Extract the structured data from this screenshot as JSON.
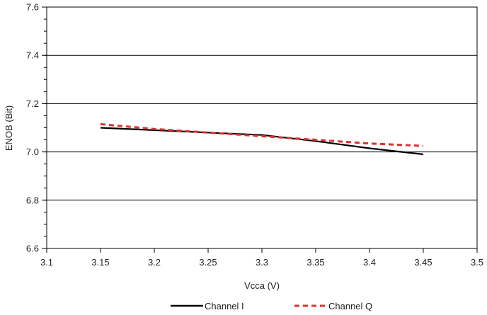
{
  "chart_data": {
    "type": "line",
    "xlabel": "Vcca (V)",
    "ylabel": "ENOB (Bit)",
    "xlim": [
      3.1,
      3.5
    ],
    "ylim": [
      6.6,
      7.6
    ],
    "x_ticks": [
      "3.1",
      "3.15",
      "3.2",
      "3.25",
      "3.3",
      "3.35",
      "3.4",
      "3.45",
      "3.5"
    ],
    "y_ticks": [
      "6.6",
      "6.8",
      "7.0",
      "7.2",
      "7.4",
      "7.6"
    ],
    "grid": "horizontal",
    "legend": "bottom",
    "series": [
      {
        "name": "Channel I",
        "color": "#000000",
        "style": "solid",
        "x": [
          3.15,
          3.2,
          3.25,
          3.3,
          3.35,
          3.4,
          3.45
        ],
        "values": [
          7.1,
          7.09,
          7.08,
          7.07,
          7.045,
          7.015,
          6.99
        ]
      },
      {
        "name": "Channel Q",
        "color": "#e03030",
        "style": "dashed",
        "x": [
          3.15,
          3.2,
          3.25,
          3.3,
          3.35,
          3.4,
          3.45
        ],
        "values": [
          7.115,
          7.095,
          7.08,
          7.065,
          7.05,
          7.035,
          7.025
        ]
      }
    ]
  }
}
